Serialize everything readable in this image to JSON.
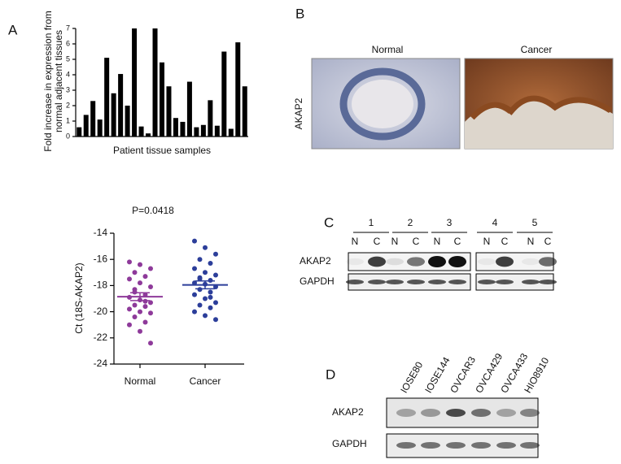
{
  "chart_data": [
    {
      "type": "bar",
      "ylabel": [
        "Fold increase in expression from",
        "normal adjacent tissues"
      ],
      "xlabel": "Patient tissue samples",
      "categories": [
        null,
        null,
        null,
        null,
        null,
        null,
        null,
        null,
        null,
        null,
        null,
        null,
        null,
        null,
        null,
        null,
        null,
        null,
        null,
        null,
        null,
        null,
        null,
        null,
        null
      ],
      "values": [
        0.6,
        1.4,
        2.3,
        1.1,
        5.1,
        2.8,
        4.05,
        2.0,
        7,
        0.65,
        0.2,
        7,
        4.8,
        3.25,
        1.2,
        0.95,
        3.55,
        0.6,
        0.75,
        2.35,
        0.7,
        5.5,
        0.5,
        6.1,
        3.25
      ],
      "color": "#000000",
      "ylim": [
        0,
        7
      ],
      "yticks": [
        0,
        1,
        2,
        3,
        4,
        5,
        6,
        7
      ]
    },
    {
      "type": "scatter",
      "title": "P=0.0418",
      "ylabel": "Ct (18S-AKAP2)",
      "categories": [
        "Normal",
        "Cancer"
      ],
      "series": [
        {
          "color": "#8e3a9a",
          "values": [
            -16.2,
            -16.4,
            -16.7,
            -17.0,
            -17.3,
            -17.5,
            -17.8,
            -18.1,
            -18.5,
            -18.7,
            -18.9,
            -19.1,
            -19.3,
            -19.5,
            -19.6,
            -19.8,
            -20.0,
            -20.1,
            -20.4,
            -20.8,
            -21.0,
            -21.5,
            -22.4,
            -18.3,
            -19.2
          ],
          "mean": -18.85,
          "error": 0.3
        },
        {
          "color": "#2c3e9a",
          "values": [
            -14.6,
            -15.1,
            -15.6,
            -16.0,
            -16.3,
            -16.7,
            -17.0,
            -17.2,
            -17.4,
            -17.6,
            -17.8,
            -17.9,
            -18.1,
            -18.3,
            -18.5,
            -18.7,
            -19.0,
            -19.3,
            -19.5,
            -19.7,
            -20.0,
            -20.3,
            -20.6,
            -17.5,
            -18.9
          ],
          "mean": -17.95,
          "error": 0.3
        }
      ],
      "ylim": [
        -24,
        -14
      ],
      "yticks": [
        -14,
        -16,
        -18,
        -20,
        -22,
        -24
      ]
    }
  ],
  "panels": {
    "A": "A",
    "B": {
      "label": "B",
      "row_label": "AKAP2",
      "images": [
        "Normal",
        "Cancer"
      ]
    },
    "C": {
      "label": "C",
      "lanes": [
        "1",
        "2",
        "3",
        "4",
        "5"
      ],
      "lane_labels": [
        "N",
        "C",
        "N",
        "C",
        "N",
        "C",
        "N",
        "C",
        "N",
        "C"
      ],
      "rows": [
        "AKAP2",
        "GAPDH"
      ]
    },
    "D": {
      "label": "D",
      "cell_lines": [
        "IOSE80",
        "IOSE144",
        "OVCAR3",
        "OVCA429",
        "OVCA433",
        "HIO8910"
      ],
      "rows": [
        "AKAP2",
        "GAPDH"
      ]
    }
  }
}
